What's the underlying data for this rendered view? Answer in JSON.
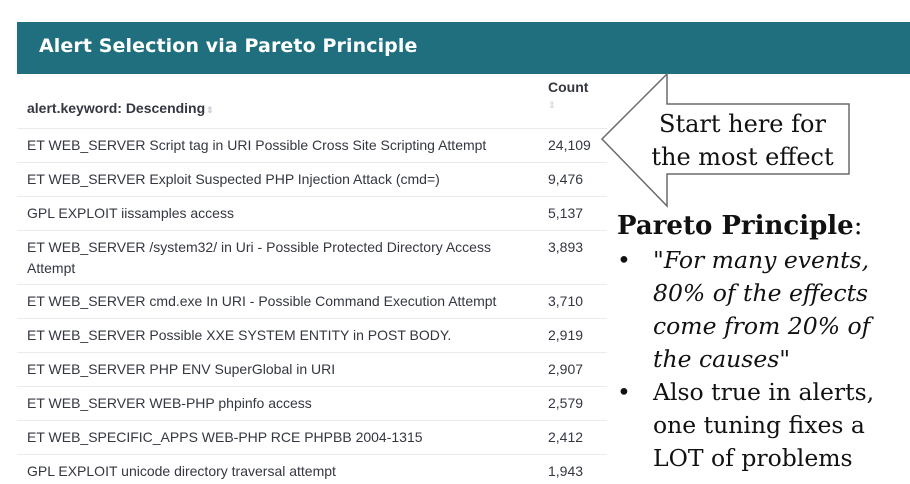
{
  "banner": {
    "title": "Alert Selection via Pareto Principle"
  },
  "table": {
    "columns": {
      "alert": "alert.keyword: Descending",
      "count": "Count"
    },
    "sort_glyph": "⇕",
    "rows": [
      {
        "alert": "ET WEB_SERVER Script tag in URI Possible Cross Site Scripting Attempt",
        "count": "24,109"
      },
      {
        "alert": "ET WEB_SERVER Exploit Suspected PHP Injection Attack (cmd=)",
        "count": "9,476"
      },
      {
        "alert": "GPL EXPLOIT iissamples access",
        "count": "5,137"
      },
      {
        "alert": "ET WEB_SERVER /system32/ in Uri - Possible Protected Directory Access Attempt",
        "count": "3,893"
      },
      {
        "alert": "ET WEB_SERVER cmd.exe In URI - Possible Command Execution Attempt",
        "count": "3,710"
      },
      {
        "alert": "ET WEB_SERVER Possible XXE SYSTEM ENTITY in POST BODY.",
        "count": "2,919"
      },
      {
        "alert": "ET WEB_SERVER PHP ENV SuperGlobal in URI",
        "count": "2,907"
      },
      {
        "alert": "ET WEB_SERVER WEB-PHP phpinfo access",
        "count": "2,579"
      },
      {
        "alert": "ET WEB_SPECIFIC_APPS WEB-PHP RCE PHPBB 2004-1315",
        "count": "2,412"
      },
      {
        "alert": "GPL EXPLOIT unicode directory traversal attempt",
        "count": "1,943"
      }
    ]
  },
  "callout": {
    "line1": "Start here for",
    "line2": "the most effect"
  },
  "pareto": {
    "heading": "Pareto Principle",
    "heading_suffix": ":",
    "bullet_glyph": "•",
    "quote_open": "\"",
    "quote_italic": "For many events, 80% of the effects come from 20% of the causes",
    "quote_close": "\"",
    "point2": "Also true in alerts, one tuning fixes a LOT of problems"
  },
  "colors": {
    "banner": "#1f6f7f",
    "text": "#343741",
    "divider": "#e9ebef"
  }
}
